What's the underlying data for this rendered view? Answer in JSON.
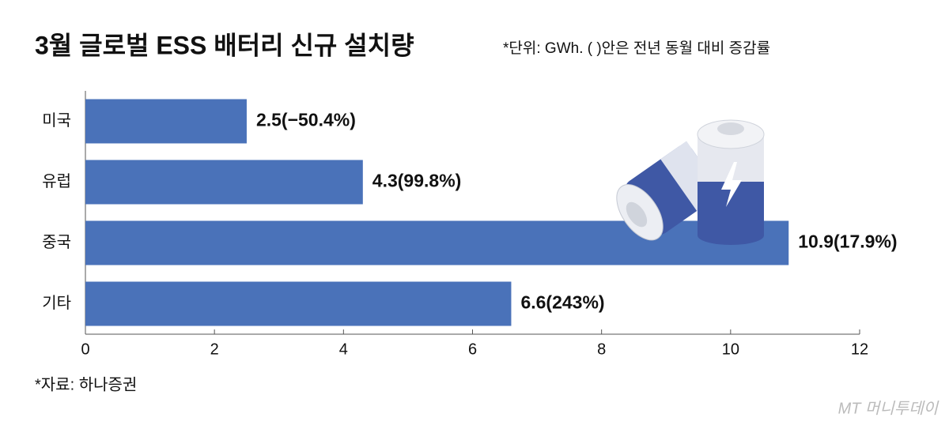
{
  "chart_data": {
    "type": "bar",
    "title": "3월 글로벌 ESS 배터리 신규 설치량",
    "subtitle": "*단위: GWh. ( )안은 전년 동월 대비 증감률",
    "categories": [
      "미국",
      "유럽",
      "중국",
      "기타"
    ],
    "values": [
      2.5,
      4.3,
      10.9,
      6.6
    ],
    "value_labels": [
      "2.5(−50.4%)",
      "4.3(99.8%)",
      "10.9(17.9%)",
      "6.6(243%)"
    ],
    "color": "#4a72b9",
    "xlim": [
      0,
      12
    ],
    "xticks": [
      0,
      2,
      4,
      6,
      8,
      10,
      12
    ],
    "source": "*자료: 하나증권",
    "watermark": "MT 머니투데이"
  }
}
